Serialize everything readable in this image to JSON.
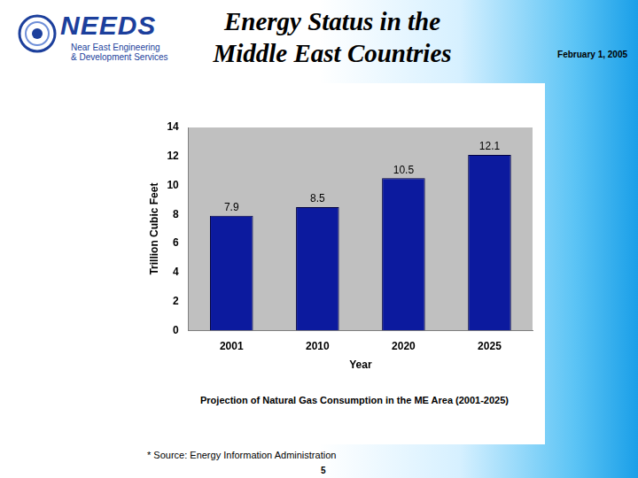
{
  "slide": {
    "logo": "NEEDS",
    "logo_subtitle": [
      "Near East Engineering",
      "& Development Services"
    ],
    "title": [
      "Energy Status in the",
      "Middle East Countries"
    ],
    "date": "February 1, 2005",
    "source": "* Source: Energy Information Administration",
    "page": 5
  },
  "chart_data": {
    "type": "bar",
    "title": "Projection of Natural Gas Consumption in the ME Area (2001-2025)",
    "x_label": "Year",
    "y_label": "Trillion Cubic Feet",
    "categories": [
      "2001",
      "2010",
      "2020",
      "2025"
    ],
    "values": [
      7.9,
      8.5,
      10.5,
      12.1
    ],
    "color": "#0c1a9e",
    "ylim": [
      0,
      14
    ],
    "yticks": [
      0,
      2,
      4,
      6,
      8,
      10,
      12,
      14
    ],
    "grid": false,
    "data_labels": true
  }
}
